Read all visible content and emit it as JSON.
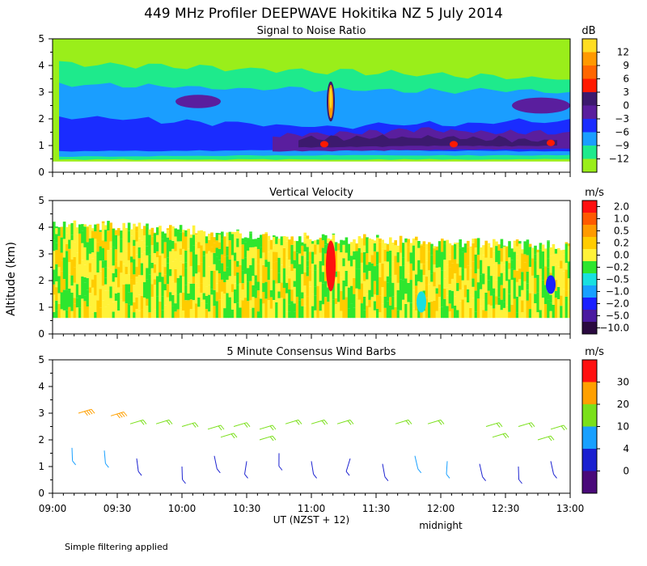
{
  "chart_data": {
    "type": "heatmap",
    "title": "449 MHz Profiler DEEPWAVE Hokitika NZ  5 July 2014",
    "xlabel": "UT  (NZST + 12)",
    "x_note": "midnight",
    "ylabel": "Altitude (km)",
    "footnote": "Simple filtering applied",
    "x_ticks": [
      "09:00",
      "09:30",
      "10:00",
      "10:30",
      "11:00",
      "11:30",
      "12:00",
      "12:30",
      "13:00"
    ],
    "x_range_hours": [
      9,
      13
    ],
    "ylim": [
      0,
      5
    ],
    "y_ticks": [
      "0",
      "1",
      "2",
      "3",
      "4",
      "5"
    ],
    "panels": [
      {
        "title": "Signal to Noise Ratio",
        "colorbar_unit": "dB",
        "colorbar": {
          "labels": [
            "12",
            "9",
            "6",
            "3",
            "0",
            "−3",
            "−6",
            "−9",
            "−12"
          ],
          "colors": [
            "#ff9900",
            "#ff6600",
            "#ff1a00",
            "#3c1a6e",
            "#5a1e9e",
            "#1a2cff",
            "#1a9eff",
            "#1eea8c",
            "#9aee1a"
          ],
          "top_color": "#ffdd22"
        },
        "layers": [
          {
            "name": "below -12",
            "color": "#9aee1a",
            "t_start": 9.0,
            "t_end": 13.0,
            "bottom": [
              0.4,
              0.4,
              0.4
            ],
            "top": [
              5.0,
              5.0,
              5.0
            ]
          },
          {
            "name": "-12 to -9",
            "color": "#1eea8c",
            "t_start": 9.05,
            "t_end": 13.0,
            "bottom": [
              0.5,
              0.5,
              0.5
            ],
            "top": [
              4.1,
              3.8,
              3.5
            ]
          },
          {
            "name": "-9 to -6",
            "color": "#1a9eff",
            "t_start": 9.05,
            "t_end": 13.0,
            "bottom": [
              0.6,
              0.65,
              0.65
            ],
            "top": [
              3.3,
              3.1,
              3.0
            ]
          },
          {
            "name": "-6 to -3",
            "color": "#1a2cff",
            "t_start": 9.05,
            "t_end": 13.0,
            "bottom": [
              0.8,
              0.85,
              0.8
            ],
            "top": [
              2.1,
              1.7,
              1.95
            ]
          },
          {
            "name": "-3 to 0",
            "color": "#5a1e9e",
            "t_start": 10.7,
            "t_end": 13.0,
            "bottom": [
              0.8,
              0.85,
              0.9
            ],
            "top": [
              1.4,
              1.6,
              1.45
            ]
          },
          {
            "name": "0 to 3",
            "color": "#3c1a6e",
            "t_start": 10.9,
            "t_end": 12.9,
            "bottom": [
              0.95,
              1.0,
              1.0
            ],
            "top": [
              1.25,
              1.3,
              1.2
            ]
          }
        ],
        "features": [
          {
            "name": "plume",
            "t": 11.15,
            "alt_low": 1.9,
            "alt_high": 3.4,
            "color": "#ff9900"
          },
          {
            "name": "hotspot",
            "t": 12.1,
            "alt": 1.05,
            "color": "#ff1a00"
          },
          {
            "name": "hotspot",
            "t": 11.1,
            "alt": 1.05,
            "color": "#ff1a00"
          },
          {
            "name": "hotspot",
            "t": 12.85,
            "alt": 1.1,
            "color": "#ff1a00"
          },
          {
            "name": "patch",
            "t_start": 9.95,
            "t_end": 10.3,
            "alt_low": 2.4,
            "alt_high": 2.9,
            "color": "#5a1e9e"
          },
          {
            "name": "patch",
            "t_start": 12.55,
            "t_end": 13.0,
            "alt_low": 2.2,
            "alt_high": 2.8,
            "color": "#5a1e9e"
          }
        ]
      },
      {
        "title": "Vertical Velocity",
        "colorbar_unit": "m/s",
        "colorbar": {
          "labels": [
            "2.0",
            "1.0",
            "0.5",
            "0.2",
            "0.0",
            "−0.2",
            "−0.5",
            "−1.0",
            "−2.0",
            "−5.0",
            "−10.0"
          ],
          "colors": [
            "#ff1010",
            "#ff5a00",
            "#ff9a00",
            "#ffcc00",
            "#fff23a",
            "#2ee62e",
            "#18e0e0",
            "#18a0ff",
            "#1a20ff",
            "#4a1aa0",
            "#2a0a40"
          ]
        },
        "band": {
          "t_start": 9.0,
          "t_end": 13.0,
          "bottom": 0.6,
          "top": [
            4.2,
            3.6,
            3.3
          ]
        },
        "features": [
          {
            "name": "updraft",
            "t": 11.15,
            "alt_low": 1.6,
            "alt_high": 3.5,
            "color": "#ff1010"
          },
          {
            "name": "downdraft",
            "t": 11.85,
            "alt_low": 0.8,
            "alt_high": 1.6,
            "color": "#18e0e0"
          },
          {
            "name": "downdraft",
            "t": 12.85,
            "alt_low": 1.5,
            "alt_high": 2.2,
            "color": "#1a20ff"
          }
        ]
      },
      {
        "title": "5 Minute Consensus Wind Barbs",
        "colorbar_unit": "m/s",
        "colorbar": {
          "labels": [
            "30",
            "20",
            "10",
            "4",
            "0"
          ],
          "colors": [
            "#ff1010",
            "#ffa000",
            "#7ae01a",
            "#18a0ff",
            "#1a20d0",
            "#4a0a7a"
          ]
        },
        "barbs": [
          {
            "t": 9.2,
            "alt": 3.0,
            "speed": 20
          },
          {
            "t": 9.45,
            "alt": 2.9,
            "speed": 20
          },
          {
            "t": 9.6,
            "alt": 2.6,
            "speed": 12
          },
          {
            "t": 9.8,
            "alt": 2.6,
            "speed": 12
          },
          {
            "t": 10.0,
            "alt": 2.5,
            "speed": 11
          },
          {
            "t": 10.2,
            "alt": 2.4,
            "speed": 12
          },
          {
            "t": 10.4,
            "alt": 2.5,
            "speed": 12
          },
          {
            "t": 10.6,
            "alt": 2.4,
            "speed": 12
          },
          {
            "t": 10.8,
            "alt": 2.6,
            "speed": 11
          },
          {
            "t": 11.0,
            "alt": 2.6,
            "speed": 11
          },
          {
            "t": 11.2,
            "alt": 2.6,
            "speed": 11
          },
          {
            "t": 11.65,
            "alt": 2.6,
            "speed": 11
          },
          {
            "t": 11.9,
            "alt": 2.6,
            "speed": 11
          },
          {
            "t": 12.35,
            "alt": 2.5,
            "speed": 12
          },
          {
            "t": 12.6,
            "alt": 2.5,
            "speed": 12
          },
          {
            "t": 12.85,
            "alt": 2.4,
            "speed": 12
          },
          {
            "t": 12.4,
            "alt": 2.1,
            "speed": 10
          },
          {
            "t": 12.75,
            "alt": 2.0,
            "speed": 10
          },
          {
            "t": 10.3,
            "alt": 2.1,
            "speed": 9
          },
          {
            "t": 10.6,
            "alt": 2.0,
            "speed": 9
          },
          {
            "t": 9.15,
            "alt": 1.7,
            "speed": 6
          },
          {
            "t": 9.4,
            "alt": 1.6,
            "speed": 5
          },
          {
            "t": 9.65,
            "alt": 1.3,
            "speed": 3
          },
          {
            "t": 10.0,
            "alt": 1.0,
            "speed": 3
          },
          {
            "t": 10.25,
            "alt": 1.4,
            "speed": 3
          },
          {
            "t": 10.5,
            "alt": 1.2,
            "speed": 3
          },
          {
            "t": 10.75,
            "alt": 1.5,
            "speed": 3
          },
          {
            "t": 11.0,
            "alt": 1.2,
            "speed": 3
          },
          {
            "t": 11.3,
            "alt": 1.3,
            "speed": 3
          },
          {
            "t": 11.55,
            "alt": 1.1,
            "speed": 3
          },
          {
            "t": 11.8,
            "alt": 1.4,
            "speed": 5
          },
          {
            "t": 12.05,
            "alt": 1.2,
            "speed": 6
          },
          {
            "t": 12.3,
            "alt": 1.1,
            "speed": 3
          },
          {
            "t": 12.6,
            "alt": 1.0,
            "speed": 3
          },
          {
            "t": 12.85,
            "alt": 1.2,
            "speed": 3
          }
        ]
      }
    ]
  }
}
